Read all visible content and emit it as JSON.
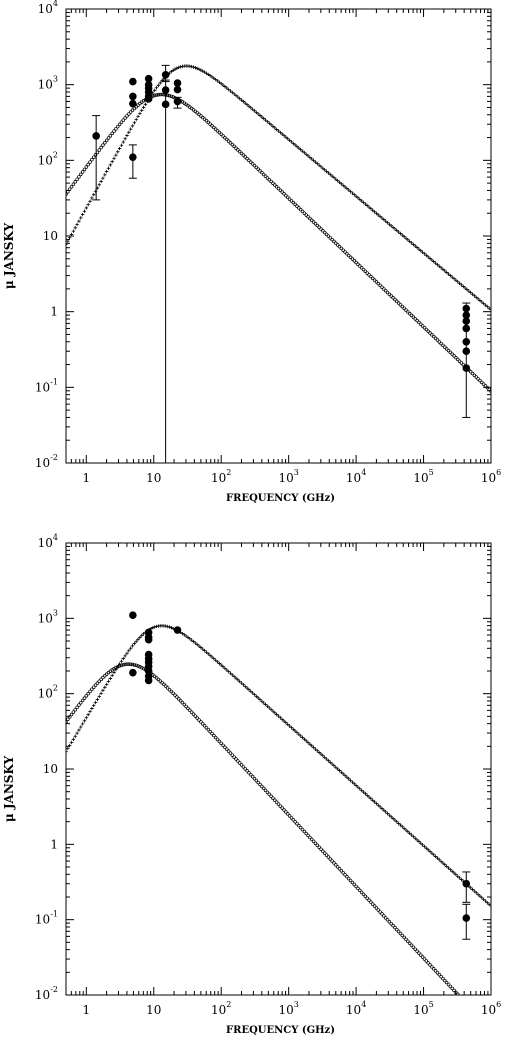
{
  "chart_data": [
    {
      "type": "scatter",
      "xlabel": "FREQUENCY (GHz)",
      "ylabel": "μ JANSKY",
      "x_scale": "log",
      "y_scale": "log",
      "xlim": [
        0.5,
        1000000
      ],
      "ylim": [
        0.01,
        10000
      ],
      "x_tick_labels": [
        {
          "v": 1,
          "base": "1",
          "exp": ""
        },
        {
          "v": 10,
          "base": "10",
          "exp": ""
        },
        {
          "v": 100,
          "base": "10",
          "exp": "2"
        },
        {
          "v": 1000,
          "base": "10",
          "exp": "3"
        },
        {
          "v": 10000,
          "base": "10",
          "exp": "4"
        },
        {
          "v": 100000,
          "base": "10",
          "exp": "5"
        },
        {
          "v": 1000000,
          "base": "10",
          "exp": "6"
        }
      ],
      "y_tick_labels": [
        {
          "v": 0.01,
          "base": "10",
          "exp": "-2"
        },
        {
          "v": 0.1,
          "base": "10",
          "exp": "-1"
        },
        {
          "v": 1,
          "base": "1",
          "exp": ""
        },
        {
          "v": 10,
          "base": "10",
          "exp": ""
        },
        {
          "v": 100,
          "base": "10",
          "exp": "2"
        },
        {
          "v": 1000,
          "base": "10",
          "exp": "3"
        },
        {
          "v": 10000,
          "base": "10",
          "exp": "4"
        }
      ],
      "curves": [
        {
          "marker": "plus",
          "peak_x": 22,
          "peak_y": 1650,
          "low_slope": 1.6,
          "high_slope": 0.75
        },
        {
          "marker": "circle",
          "peak_x": 11,
          "peak_y": 730,
          "low_slope": 1.2,
          "high_slope": 0.85
        }
      ],
      "points": [
        {
          "x": 1.4,
          "y": 210,
          "err_lo": 30,
          "err_hi": 390
        },
        {
          "x": 4.9,
          "y": 1100
        },
        {
          "x": 4.9,
          "y": 700
        },
        {
          "x": 4.9,
          "y": 560
        },
        {
          "x": 4.9,
          "y": 110,
          "err_lo": 58,
          "err_hi": 160
        },
        {
          "x": 8.4,
          "y": 1200
        },
        {
          "x": 8.4,
          "y": 1000
        },
        {
          "x": 8.4,
          "y": 900
        },
        {
          "x": 8.4,
          "y": 800
        },
        {
          "x": 8.4,
          "y": 700
        },
        {
          "x": 8.4,
          "y": 650
        },
        {
          "x": 15,
          "y": 1350,
          "err_lo": 1100,
          "err_hi": 1800
        },
        {
          "x": 15,
          "y": 850,
          "err_lo": 0.01,
          "err_hi": 1150
        },
        {
          "x": 15,
          "y": 550
        },
        {
          "x": 22.5,
          "y": 1050
        },
        {
          "x": 22.5,
          "y": 860
        },
        {
          "x": 22.5,
          "y": 600,
          "err_lo": 490,
          "err_hi": 680
        },
        {
          "x": 430000,
          "y": 1.1
        },
        {
          "x": 430000,
          "y": 0.9
        },
        {
          "x": 430000,
          "y": 0.75
        },
        {
          "x": 430000,
          "y": 0.6
        },
        {
          "x": 430000,
          "y": 0.4
        },
        {
          "x": 430000,
          "y": 0.3
        },
        {
          "x": 430000,
          "y": 0.18,
          "err_lo": 0.04,
          "err_hi": 1.3
        }
      ]
    },
    {
      "type": "scatter",
      "xlabel": "FREQUENCY (GHz)",
      "ylabel": "μ JANSKY",
      "x_scale": "log",
      "y_scale": "log",
      "xlim": [
        0.5,
        1000000
      ],
      "ylim": [
        0.01,
        10000
      ],
      "x_tick_labels": [
        {
          "v": 1,
          "base": "1",
          "exp": ""
        },
        {
          "v": 10,
          "base": "10",
          "exp": ""
        },
        {
          "v": 100,
          "base": "10",
          "exp": "2"
        },
        {
          "v": 1000,
          "base": "10",
          "exp": "3"
        },
        {
          "v": 10000,
          "base": "10",
          "exp": "4"
        },
        {
          "v": 100000,
          "base": "10",
          "exp": "5"
        },
        {
          "v": 1000000,
          "base": "10",
          "exp": "6"
        }
      ],
      "y_tick_labels": [
        {
          "v": 0.01,
          "base": "10",
          "exp": "-2"
        },
        {
          "v": 0.1,
          "base": "10",
          "exp": "-1"
        },
        {
          "v": 1,
          "base": "1",
          "exp": ""
        },
        {
          "v": 10,
          "base": "10",
          "exp": ""
        },
        {
          "v": 100,
          "base": "10",
          "exp": "2"
        },
        {
          "v": 1000,
          "base": "10",
          "exp": "3"
        },
        {
          "v": 10000,
          "base": "10",
          "exp": "4"
        }
      ],
      "curves": [
        {
          "marker": "plus",
          "peak_x": 10,
          "peak_y": 760,
          "low_slope": 1.5,
          "high_slope": 0.8
        },
        {
          "marker": "circle",
          "peak_x": 3.8,
          "peak_y": 245,
          "low_slope": 1.2,
          "high_slope": 0.95
        }
      ],
      "points": [
        {
          "x": 4.9,
          "y": 1100
        },
        {
          "x": 4.9,
          "y": 190
        },
        {
          "x": 8.4,
          "y": 650
        },
        {
          "x": 8.4,
          "y": 560
        },
        {
          "x": 8.4,
          "y": 520
        },
        {
          "x": 8.4,
          "y": 330
        },
        {
          "x": 8.4,
          "y": 290
        },
        {
          "x": 8.4,
          "y": 260
        },
        {
          "x": 8.4,
          "y": 230
        },
        {
          "x": 8.4,
          "y": 200
        },
        {
          "x": 8.4,
          "y": 170
        },
        {
          "x": 8.4,
          "y": 150
        },
        {
          "x": 22.5,
          "y": 700
        },
        {
          "x": 430000,
          "y": 0.3,
          "err_lo": 0.17,
          "err_hi": 0.43
        },
        {
          "x": 430000,
          "y": 0.105,
          "err_lo": 0.055,
          "err_hi": 0.16
        }
      ]
    }
  ]
}
